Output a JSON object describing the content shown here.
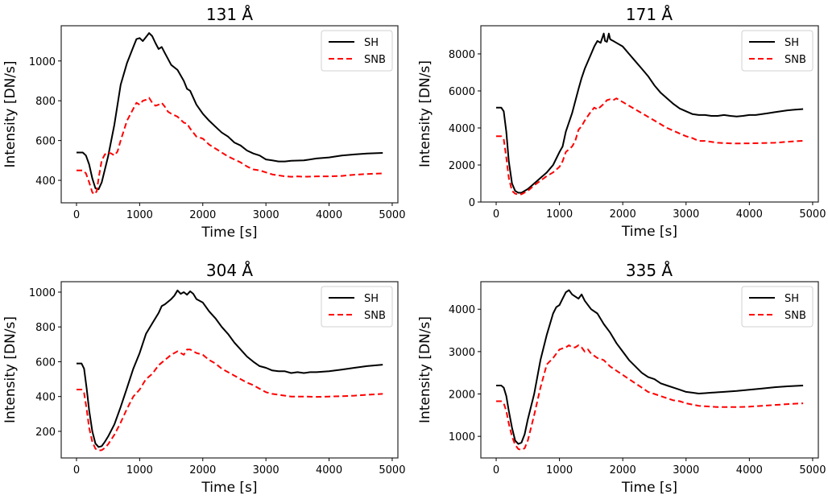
{
  "figure": {
    "panel_count": 4,
    "layout": "2x2 grid"
  },
  "chart_data": [
    {
      "type": "line",
      "title": "131 Å",
      "xlabel": "Time [s]",
      "ylabel": "Intensity [DN/s]",
      "xlim": [
        -242,
        5090
      ],
      "ylim": [
        287,
        1177
      ],
      "xticks": [
        0,
        1000,
        2000,
        3000,
        4000,
        5000
      ],
      "xtick_labels": [
        "0",
        "1000",
        "2000",
        "3000",
        "4000",
        "5000"
      ],
      "yticks": [
        400,
        600,
        800,
        1000
      ],
      "ytick_labels": [
        "400",
        "600",
        "800",
        "1000"
      ],
      "grid": false,
      "legend": {
        "position": "top-right",
        "entries": [
          "SH",
          "SNB"
        ]
      },
      "series": [
        {
          "name": "SH",
          "color": "#000000",
          "style": "solid",
          "x": [
            0,
            100,
            150,
            200,
            250,
            300,
            350,
            400,
            500,
            600,
            700,
            800,
            900,
            950,
            1000,
            1050,
            1100,
            1150,
            1200,
            1250,
            1300,
            1350,
            1400,
            1500,
            1600,
            1700,
            1750,
            1800,
            1900,
            2000,
            2100,
            2200,
            2300,
            2400,
            2500,
            2600,
            2700,
            2800,
            2900,
            3000,
            3100,
            3200,
            3300,
            3400,
            3600,
            3800,
            4000,
            4200,
            4400,
            4600,
            4850
          ],
          "y": [
            540,
            540,
            525,
            480,
            410,
            360,
            355,
            390,
            520,
            680,
            880,
            990,
            1070,
            1110,
            1115,
            1100,
            1120,
            1140,
            1125,
            1090,
            1060,
            1070,
            1040,
            980,
            955,
            900,
            860,
            850,
            780,
            735,
            700,
            670,
            640,
            620,
            590,
            575,
            550,
            535,
            525,
            505,
            500,
            495,
            495,
            498,
            500,
            510,
            515,
            525,
            530,
            535,
            538
          ]
        },
        {
          "name": "SNB",
          "color": "#ff0000",
          "style": "dashed",
          "x": [
            0,
            100,
            150,
            200,
            250,
            280,
            320,
            350,
            400,
            450,
            500,
            550,
            600,
            650,
            700,
            800,
            900,
            950,
            1000,
            1050,
            1100,
            1150,
            1200,
            1250,
            1300,
            1350,
            1400,
            1450,
            1500,
            1600,
            1700,
            1750,
            1800,
            1900,
            2000,
            2100,
            2200,
            2300,
            2400,
            2500,
            2600,
            2700,
            2800,
            2900,
            3000,
            3100,
            3200,
            3300,
            3400,
            3500,
            3600,
            3800,
            4000,
            4200,
            4400,
            4600,
            4850
          ],
          "y": [
            450,
            450,
            435,
            390,
            340,
            330,
            345,
            410,
            500,
            530,
            540,
            535,
            525,
            545,
            600,
            700,
            760,
            790,
            780,
            800,
            805,
            815,
            790,
            775,
            780,
            790,
            770,
            745,
            735,
            720,
            690,
            685,
            660,
            620,
            610,
            580,
            560,
            540,
            520,
            505,
            490,
            470,
            455,
            450,
            440,
            430,
            425,
            420,
            418,
            420,
            418,
            420,
            420,
            422,
            428,
            432,
            435
          ]
        }
      ]
    },
    {
      "type": "line",
      "title": "171 Å",
      "xlabel": "Time [s]",
      "ylabel": "Intensity [DN/s]",
      "xlim": [
        -242,
        5090
      ],
      "ylim": [
        0,
        9520
      ],
      "xticks": [
        0,
        1000,
        2000,
        3000,
        4000,
        5000
      ],
      "xtick_labels": [
        "0",
        "1000",
        "2000",
        "3000",
        "4000",
        "5000"
      ],
      "yticks": [
        0,
        2000,
        4000,
        6000,
        8000
      ],
      "ytick_labels": [
        "0",
        "2000",
        "4000",
        "6000",
        "8000"
      ],
      "grid": false,
      "legend": {
        "position": "top-right",
        "entries": [
          "SH",
          "SNB"
        ]
      },
      "series": [
        {
          "name": "SH",
          "color": "#000000",
          "style": "solid",
          "x": [
            0,
            80,
            120,
            160,
            200,
            250,
            300,
            350,
            400,
            500,
            600,
            700,
            800,
            900,
            1000,
            1050,
            1100,
            1200,
            1300,
            1350,
            1400,
            1500,
            1550,
            1600,
            1650,
            1700,
            1720,
            1750,
            1780,
            1800,
            1820,
            1850,
            1900,
            2000,
            2100,
            2200,
            2300,
            2400,
            2500,
            2600,
            2700,
            2800,
            2900,
            3000,
            3100,
            3200,
            3300,
            3400,
            3500,
            3600,
            3700,
            3800,
            3900,
            4000,
            4100,
            4200,
            4300,
            4400,
            4500,
            4600,
            4700,
            4850
          ],
          "y": [
            5100,
            5100,
            4900,
            3800,
            2200,
            1000,
            600,
            500,
            500,
            700,
            1000,
            1300,
            1600,
            2000,
            2700,
            3000,
            3800,
            4800,
            6100,
            6700,
            7200,
            8000,
            8400,
            8700,
            8600,
            9100,
            8700,
            8650,
            9100,
            8800,
            8750,
            8700,
            8600,
            8400,
            8000,
            7600,
            7200,
            6800,
            6300,
            5900,
            5600,
            5300,
            5050,
            4900,
            4750,
            4700,
            4700,
            4650,
            4650,
            4700,
            4650,
            4620,
            4650,
            4700,
            4700,
            4750,
            4800,
            4850,
            4900,
            4950,
            4980,
            5020
          ]
        },
        {
          "name": "SNB",
          "color": "#ff0000",
          "style": "dashed",
          "x": [
            0,
            80,
            120,
            160,
            200,
            250,
            300,
            350,
            400,
            500,
            600,
            700,
            800,
            900,
            1000,
            1050,
            1100,
            1200,
            1250,
            1300,
            1350,
            1400,
            1500,
            1550,
            1600,
            1700,
            1750,
            1800,
            1850,
            1900,
            1950,
            2000,
            2100,
            2200,
            2300,
            2400,
            2500,
            2600,
            2700,
            2800,
            2900,
            3000,
            3100,
            3200,
            3300,
            3400,
            3500,
            3600,
            3700,
            3800,
            4000,
            4200,
            4400,
            4600,
            4850
          ],
          "y": [
            3550,
            3550,
            3400,
            2400,
            1300,
            600,
            450,
            400,
            420,
            600,
            900,
            1150,
            1400,
            1600,
            1900,
            2200,
            2700,
            3000,
            3300,
            3900,
            4100,
            4400,
            4900,
            5100,
            5000,
            5300,
            5500,
            5550,
            5500,
            5600,
            5500,
            5400,
            5200,
            5000,
            4800,
            4600,
            4400,
            4200,
            4000,
            3850,
            3700,
            3550,
            3450,
            3300,
            3300,
            3250,
            3200,
            3180,
            3170,
            3160,
            3170,
            3180,
            3200,
            3250,
            3310
          ]
        }
      ]
    },
    {
      "type": "line",
      "title": "304 Å",
      "xlabel": "Time [s]",
      "ylabel": "Intensity [DN/s]",
      "xlim": [
        -242,
        5090
      ],
      "ylim": [
        47,
        1060
      ],
      "xticks": [
        0,
        1000,
        2000,
        3000,
        4000,
        5000
      ],
      "xtick_labels": [
        "0",
        "1000",
        "2000",
        "3000",
        "4000",
        "5000"
      ],
      "yticks": [
        200,
        400,
        600,
        800,
        1000
      ],
      "ytick_labels": [
        "200",
        "400",
        "600",
        "800",
        "1000"
      ],
      "grid": false,
      "legend": {
        "position": "top-right",
        "entries": [
          "SH",
          "SNB"
        ]
      },
      "series": [
        {
          "name": "SH",
          "color": "#000000",
          "style": "solid",
          "x": [
            0,
            80,
            120,
            160,
            200,
            250,
            300,
            350,
            400,
            450,
            500,
            600,
            700,
            800,
            900,
            1000,
            1100,
            1200,
            1300,
            1350,
            1400,
            1500,
            1550,
            1600,
            1650,
            1700,
            1750,
            1800,
            1850,
            1900,
            2000,
            2100,
            2200,
            2300,
            2400,
            2500,
            2600,
            2700,
            2800,
            2900,
            3000,
            3100,
            3200,
            3300,
            3400,
            3500,
            3600,
            3700,
            3800,
            4000,
            4200,
            4400,
            4600,
            4850
          ],
          "y": [
            590,
            590,
            560,
            450,
            320,
            200,
            130,
            110,
            115,
            140,
            170,
            240,
            340,
            450,
            560,
            650,
            760,
            820,
            880,
            920,
            930,
            960,
            980,
            1010,
            990,
            1000,
            985,
            1005,
            990,
            960,
            940,
            890,
            850,
            800,
            760,
            710,
            670,
            630,
            600,
            575,
            565,
            550,
            545,
            545,
            535,
            540,
            535,
            540,
            540,
            545,
            555,
            565,
            575,
            583
          ]
        },
        {
          "name": "SNB",
          "color": "#ff0000",
          "style": "dashed",
          "x": [
            0,
            80,
            120,
            160,
            200,
            250,
            300,
            350,
            400,
            450,
            500,
            600,
            700,
            800,
            900,
            1000,
            1100,
            1200,
            1300,
            1400,
            1500,
            1600,
            1700,
            1750,
            1800,
            1900,
            2000,
            2100,
            2200,
            2300,
            2400,
            2500,
            2600,
            2700,
            2800,
            2900,
            3000,
            3100,
            3200,
            3300,
            3400,
            3500,
            3600,
            3800,
            4000,
            4200,
            4400,
            4600,
            4850
          ],
          "y": [
            440,
            440,
            420,
            330,
            220,
            140,
            100,
            90,
            92,
            105,
            125,
            180,
            250,
            330,
            400,
            440,
            500,
            530,
            580,
            610,
            640,
            660,
            640,
            670,
            670,
            650,
            640,
            610,
            590,
            560,
            540,
            520,
            500,
            480,
            465,
            445,
            425,
            415,
            410,
            405,
            400,
            400,
            400,
            398,
            400,
            402,
            405,
            410,
            415
          ]
        }
      ]
    },
    {
      "type": "line",
      "title": "335 Å",
      "xlabel": "Time [s]",
      "ylabel": "Intensity [DN/s]",
      "xlim": [
        -242,
        5090
      ],
      "ylim": [
        490,
        4650
      ],
      "xticks": [
        0,
        1000,
        2000,
        3000,
        4000,
        5000
      ],
      "xtick_labels": [
        "0",
        "1000",
        "2000",
        "3000",
        "4000",
        "5000"
      ],
      "yticks": [
        1000,
        2000,
        3000,
        4000
      ],
      "ytick_labels": [
        "1000",
        "2000",
        "3000",
        "4000"
      ],
      "grid": false,
      "legend": {
        "position": "top-right",
        "entries": [
          "SH",
          "SNB"
        ]
      },
      "series": [
        {
          "name": "SH",
          "color": "#000000",
          "style": "solid",
          "x": [
            0,
            80,
            120,
            160,
            200,
            250,
            300,
            350,
            400,
            450,
            500,
            600,
            700,
            800,
            900,
            950,
            1000,
            1050,
            1100,
            1150,
            1200,
            1250,
            1300,
            1350,
            1400,
            1500,
            1600,
            1700,
            1800,
            1900,
            2000,
            2100,
            2200,
            2300,
            2400,
            2500,
            2600,
            2700,
            2800,
            2900,
            3000,
            3100,
            3200,
            3300,
            3400,
            3600,
            3800,
            4000,
            4200,
            4400,
            4600,
            4850
          ],
          "y": [
            2200,
            2200,
            2150,
            1950,
            1600,
            1200,
            900,
            820,
            850,
            1050,
            1400,
            2000,
            2800,
            3400,
            3900,
            4050,
            4100,
            4250,
            4400,
            4450,
            4350,
            4300,
            4250,
            4350,
            4200,
            4000,
            3900,
            3650,
            3450,
            3200,
            3000,
            2800,
            2650,
            2500,
            2400,
            2350,
            2250,
            2200,
            2150,
            2100,
            2050,
            2030,
            2010,
            2020,
            2030,
            2050,
            2070,
            2100,
            2130,
            2160,
            2180,
            2200
          ]
        },
        {
          "name": "SNB",
          "color": "#ff0000",
          "style": "dashed",
          "x": [
            0,
            80,
            120,
            160,
            200,
            250,
            300,
            350,
            400,
            450,
            500,
            600,
            700,
            800,
            900,
            1000,
            1100,
            1150,
            1200,
            1250,
            1300,
            1350,
            1400,
            1450,
            1500,
            1600,
            1700,
            1800,
            1900,
            2000,
            2100,
            2200,
            2300,
            2400,
            2500,
            2600,
            2700,
            2800,
            2900,
            3000,
            3100,
            3200,
            3300,
            3400,
            3500,
            3600,
            3800,
            4000,
            4200,
            4400,
            4600,
            4850
          ],
          "y": [
            1830,
            1830,
            1780,
            1600,
            1300,
            1000,
            800,
            700,
            680,
            720,
            900,
            1500,
            2150,
            2700,
            2850,
            3050,
            3100,
            3150,
            3100,
            3100,
            3150,
            3100,
            3000,
            3050,
            2950,
            2850,
            2800,
            2650,
            2550,
            2450,
            2350,
            2250,
            2150,
            2050,
            2000,
            1950,
            1900,
            1850,
            1830,
            1780,
            1750,
            1720,
            1710,
            1700,
            1690,
            1690,
            1690,
            1700,
            1720,
            1740,
            1760,
            1780
          ]
        }
      ]
    }
  ]
}
